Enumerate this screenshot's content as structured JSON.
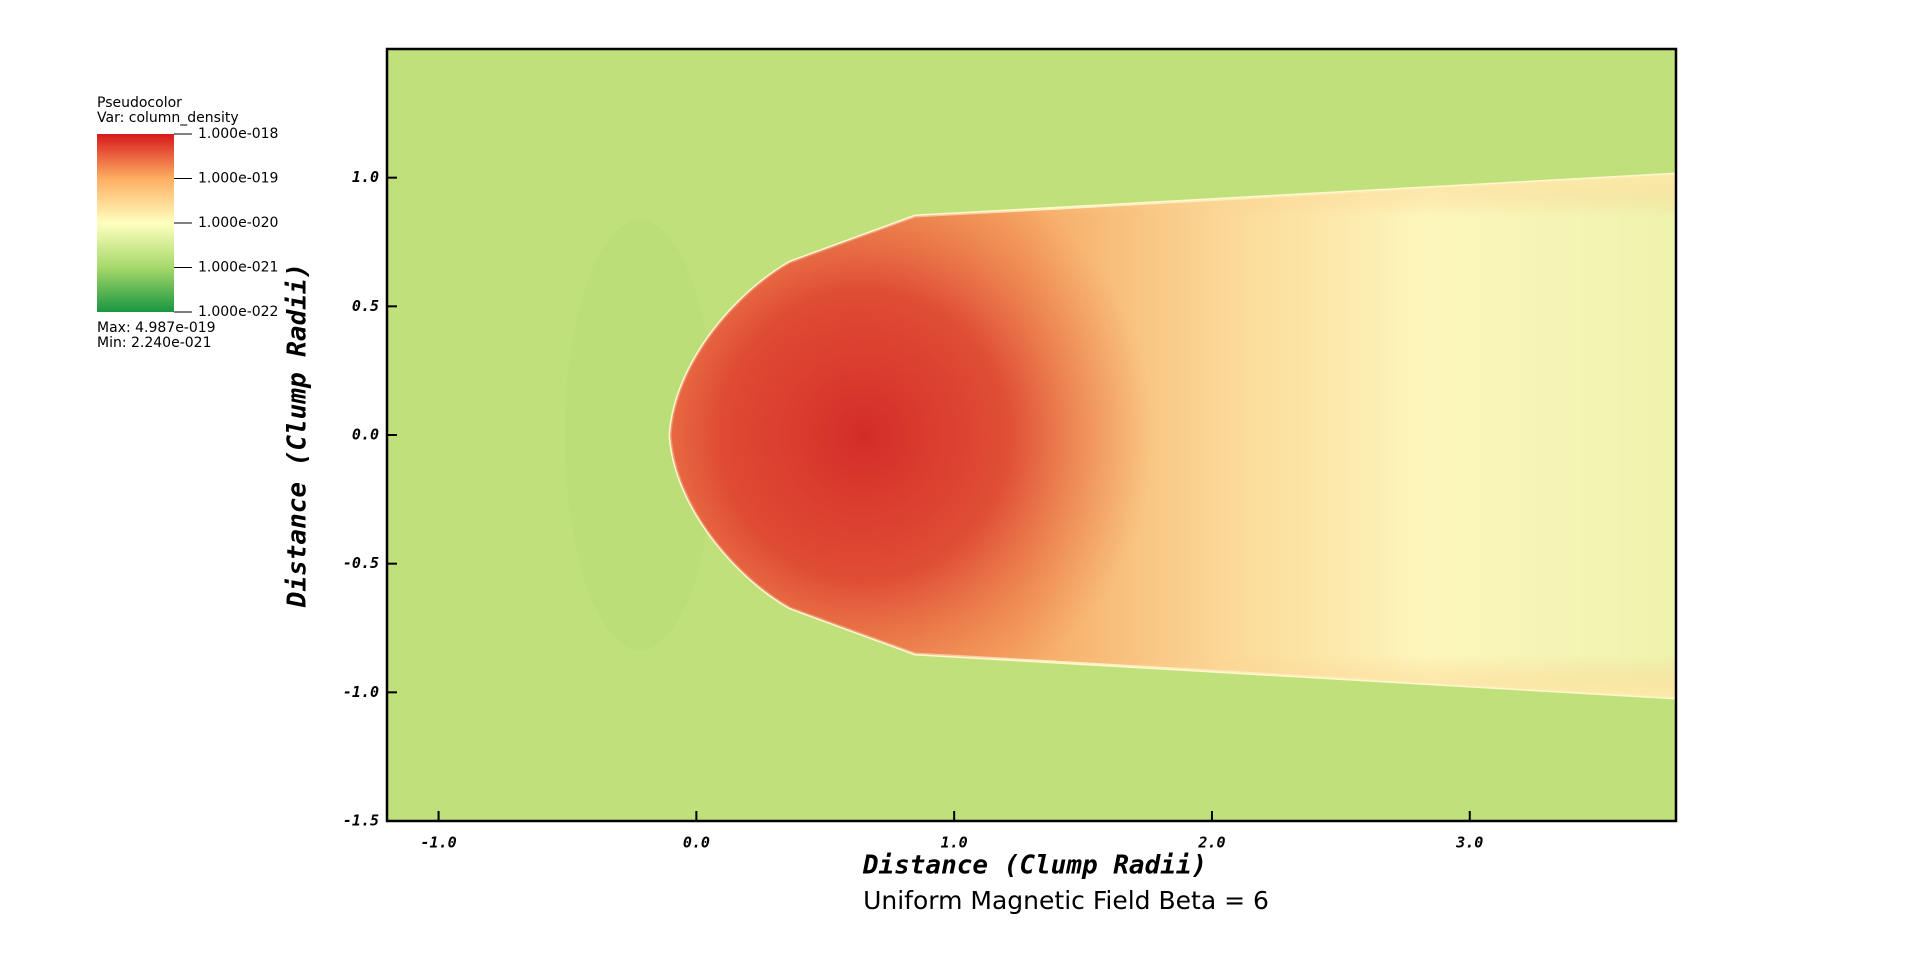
{
  "chart_data": {
    "type": "heatmap",
    "legend_title": "Pseudocolor",
    "legend_var": "Var: column_density",
    "colorbar_colors": [
      "#1a9641",
      "#a6d96a",
      "#ffffbf",
      "#fdae61",
      "#d7191c"
    ],
    "colorbar_scale": "log",
    "colorbar_lim": [
      1e-22,
      1e-18
    ],
    "colorbar_ticks": [
      {
        "value": 1e-18,
        "label": "1.000e-018"
      },
      {
        "value": 1e-19,
        "label": "1.000e-019"
      },
      {
        "value": 1e-20,
        "label": "1.000e-020"
      },
      {
        "value": 1e-21,
        "label": "1.000e-021"
      },
      {
        "value": 1e-22,
        "label": "1.000e-022"
      }
    ],
    "max_label": "Max:  4.987e-019",
    "min_label": "Min:  2.240e-021",
    "x_label": "Distance (Clump Radii)",
    "y_label": "Distance (Clump Radii)",
    "subtitle": "Uniform Magnetic Field Beta = 6",
    "xlim": [
      -1.2,
      3.8
    ],
    "ylim": [
      -1.5,
      1.5
    ],
    "xticks": [
      {
        "value": -1,
        "label": "-1.0"
      },
      {
        "value": 0,
        "label": "0.0"
      },
      {
        "value": 1,
        "label": "1.0"
      },
      {
        "value": 2,
        "label": "2.0"
      },
      {
        "value": 3,
        "label": "3.0"
      }
    ],
    "yticks": [
      {
        "value": 1,
        "label": "1.0"
      },
      {
        "value": 0.5,
        "label": "0.5"
      },
      {
        "value": 0,
        "label": "0.0"
      },
      {
        "value": -0.5,
        "label": "-0.5"
      },
      {
        "value": -1,
        "label": "-1.0"
      },
      {
        "value": -1.5,
        "label": "-1.5"
      }
    ]
  }
}
